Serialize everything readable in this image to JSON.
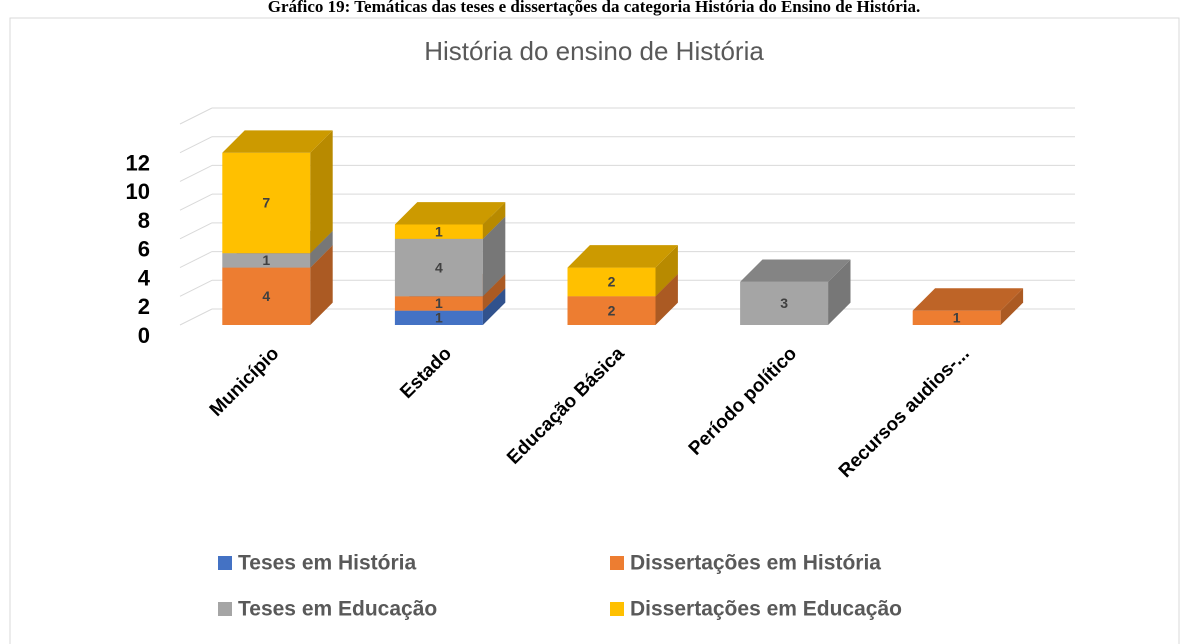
{
  "caption": "Gráfico 19: Temáticas das teses e dissertações da categoria História do Ensino de História.",
  "chart_data": {
    "type": "bar3d_stacked",
    "title": "História do ensino de História",
    "categories": [
      "Município",
      "Estado",
      "Educação Básica",
      "Período político",
      "Recursos audios-..."
    ],
    "series": [
      {
        "name": "Teses em História",
        "color": "#4472c4",
        "values": [
          null,
          1,
          null,
          null,
          null
        ]
      },
      {
        "name": "Dissertações em História",
        "color": "#ed7d31",
        "values": [
          4,
          1,
          2,
          null,
          1
        ]
      },
      {
        "name": "Teses em Educação",
        "color": "#a5a5a5",
        "values": [
          1,
          4,
          null,
          3,
          null
        ]
      },
      {
        "name": "Dissertações em Educação",
        "color": "#ffc000",
        "values": [
          7,
          1,
          2,
          null,
          null
        ]
      }
    ],
    "ylim": [
      0,
      14
    ],
    "yticks": [
      0,
      2,
      4,
      6,
      8,
      10,
      12
    ],
    "grid": true,
    "legend": "bottom"
  }
}
